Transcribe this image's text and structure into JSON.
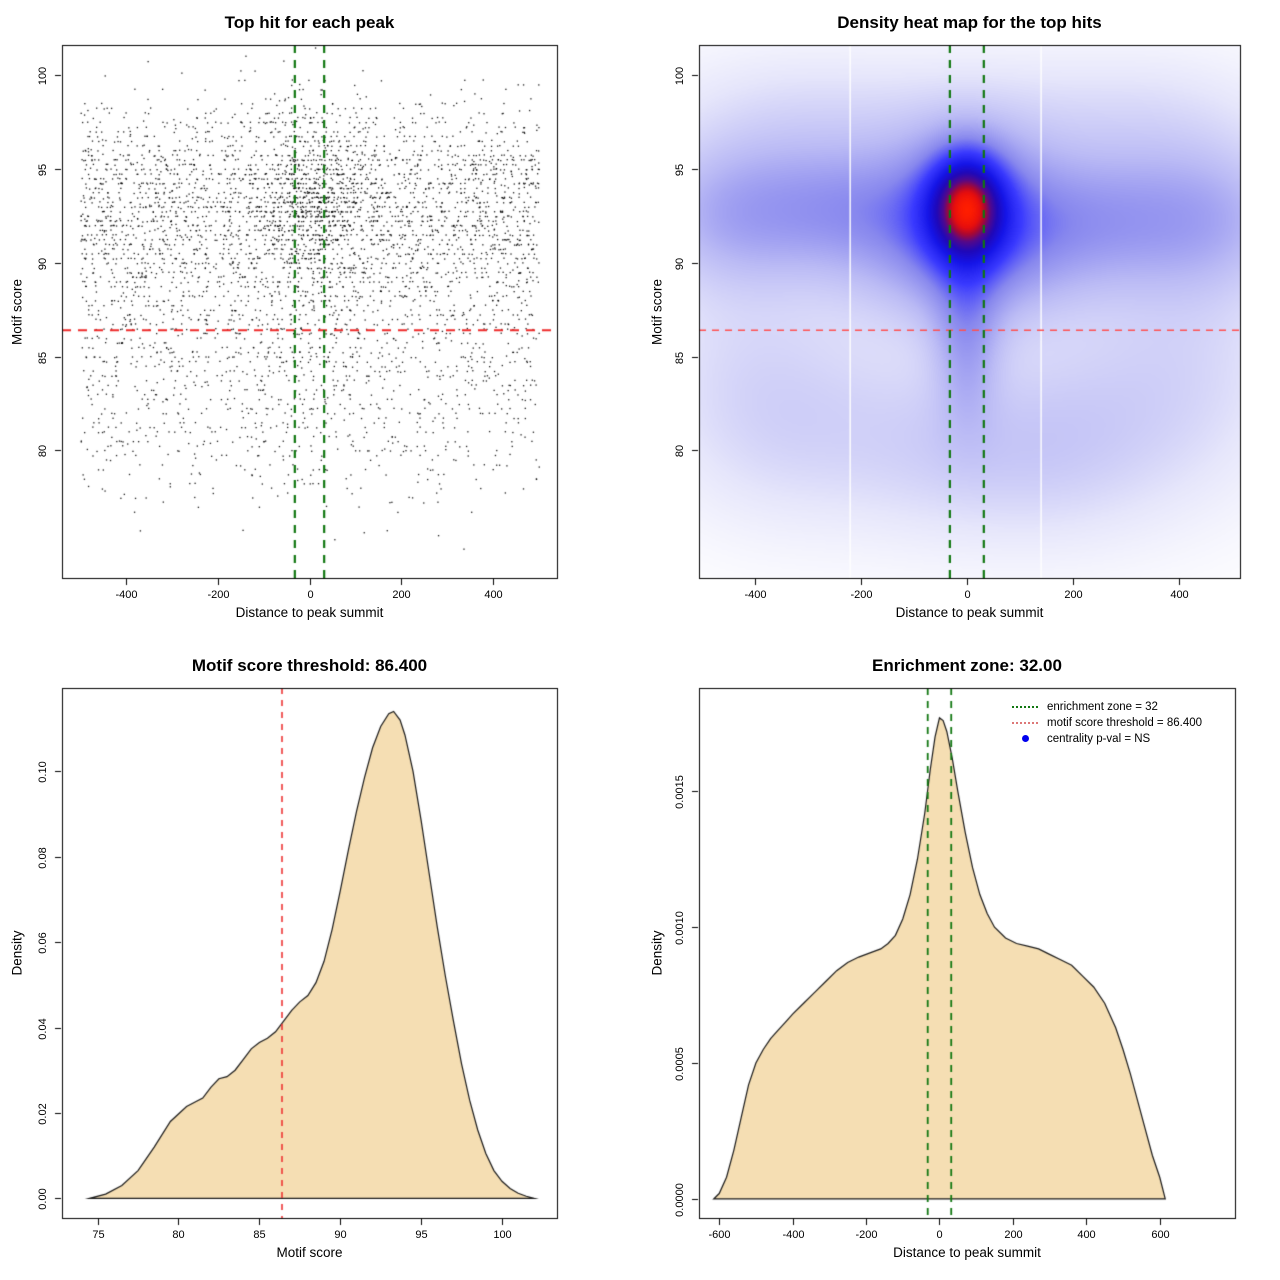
{
  "figure": {
    "background": "#FFFFFF",
    "description": "2x2 grid of motif enrichment diagnostic plots"
  },
  "chart_data": [
    {
      "id": "top-hits-scatter",
      "type": "scatter",
      "title": "Top hit for each peak",
      "xlabel": "Distance to peak summit",
      "ylabel": "Motif score",
      "xlim": [
        -540,
        540
      ],
      "ylim": [
        73.2,
        101.6
      ],
      "xticks": [
        {
          "v": -400,
          "label": "-400"
        },
        {
          "v": -200,
          "label": "-200"
        },
        {
          "v": 0,
          "label": "0"
        },
        {
          "v": 200,
          "label": "200"
        },
        {
          "v": 400,
          "label": "400"
        }
      ],
      "yticks": [
        {
          "v": 80,
          "label": "80"
        },
        {
          "v": 85,
          "label": "85"
        },
        {
          "v": 90,
          "label": "90"
        },
        {
          "v": 95,
          "label": "95"
        },
        {
          "v": 100,
          "label": "100"
        }
      ],
      "point_color": "#000000",
      "n_points": 4600,
      "x_data_range": [
        -500,
        500
      ],
      "score_quantize": 0.25,
      "center_bias": {
        "sd": 70,
        "prob_high": 0.2,
        "prob_mid": 0.12,
        "prob_low": 0.06
      },
      "threshold_line": {
        "y": 86.4,
        "color": "#EE2A2A",
        "dash": [
          9,
          7
        ],
        "width": 1.8
      },
      "zone_lines": {
        "x": [
          -32,
          32
        ],
        "color": "#117711",
        "dash": [
          8,
          7
        ],
        "width": 2.2
      }
    },
    {
      "id": "top-hits-heatmap",
      "type": "heatmap",
      "title": "Density heat map for the top hits",
      "xlabel": "Distance to peak summit",
      "ylabel": "Motif score",
      "xlim": [
        -505,
        515
      ],
      "ylim": [
        73.2,
        101.6
      ],
      "xticks": [
        {
          "v": -400,
          "label": "-400"
        },
        {
          "v": -200,
          "label": "-200"
        },
        {
          "v": 0,
          "label": "0"
        },
        {
          "v": 200,
          "label": "200"
        },
        {
          "v": 400,
          "label": "400"
        }
      ],
      "yticks": [
        {
          "v": 80,
          "label": "80"
        },
        {
          "v": 85,
          "label": "85"
        },
        {
          "v": 90,
          "label": "90"
        },
        {
          "v": 95,
          "label": "95"
        },
        {
          "v": 100,
          "label": "100"
        }
      ],
      "gamma": 0.66,
      "blobs": [
        {
          "cx": 0,
          "cy": 93.1,
          "sx": 48,
          "sy": 1.9,
          "w": 1.5
        },
        {
          "cx": 0,
          "cy": 92.6,
          "sx": 105,
          "sy": 2.9,
          "w": 0.9
        },
        {
          "cx": -235,
          "cy": 92.9,
          "sx": 125,
          "sy": 2.3,
          "w": 0.55
        },
        {
          "cx": 235,
          "cy": 92.4,
          "sx": 135,
          "sy": 2.4,
          "w": 0.52
        },
        {
          "cx": -455,
          "cy": 92.6,
          "sx": 110,
          "sy": 2.6,
          "w": 0.45
        },
        {
          "cx": 465,
          "cy": 92.4,
          "sx": 115,
          "sy": 2.7,
          "w": 0.42
        },
        {
          "cx": 0,
          "cy": 89.7,
          "sx": 190,
          "sy": 2.8,
          "w": 0.33
        },
        {
          "cx": 0,
          "cy": 87.3,
          "sx": 46,
          "sy": 2.6,
          "w": 0.35
        },
        {
          "cx": 0,
          "cy": 84.2,
          "sx": 40,
          "sy": 2.6,
          "w": 0.22
        },
        {
          "cx": -300,
          "cy": 81.2,
          "sx": 150,
          "sy": 3.4,
          "w": 0.21
        },
        {
          "cx": 255,
          "cy": 81.4,
          "sx": 170,
          "sy": 3.6,
          "w": 0.23
        },
        {
          "cx": -70,
          "cy": 80.3,
          "sx": 120,
          "sy": 3.2,
          "w": 0.16
        },
        {
          "cx": 110,
          "cy": 79.6,
          "sx": 130,
          "sy": 3.0,
          "w": 0.16
        },
        {
          "cx": 0,
          "cy": 97.6,
          "sx": 290,
          "sy": 2.3,
          "w": 0.17
        },
        {
          "cx": -350,
          "cy": 97.2,
          "sx": 150,
          "sy": 2.6,
          "w": 0.13
        },
        {
          "cx": 355,
          "cy": 97.1,
          "sx": 150,
          "sy": 2.6,
          "w": 0.12
        },
        {
          "cx": -425,
          "cy": 85.2,
          "sx": 130,
          "sy": 4.2,
          "w": 0.15
        },
        {
          "cx": 425,
          "cy": 86.1,
          "sx": 130,
          "sy": 4.2,
          "w": 0.17
        }
      ],
      "colormap": [
        [
          0.0,
          "#FFFFFF"
        ],
        [
          0.14,
          "#E6E6FB"
        ],
        [
          0.3,
          "#BBBBF5"
        ],
        [
          0.45,
          "#8888EE"
        ],
        [
          0.58,
          "#3A3AFF"
        ],
        [
          0.7,
          "#1515E8"
        ],
        [
          0.79,
          "#2008B8"
        ],
        [
          0.86,
          "#55088A"
        ],
        [
          0.91,
          "#A80834"
        ],
        [
          0.95,
          "#E60E0E"
        ],
        [
          1.0,
          "#FF1E00"
        ]
      ],
      "white_stripes": [
        -220,
        140
      ],
      "threshold_line": {
        "y": 86.4,
        "color": "#FF5050",
        "dash": [
          7,
          6
        ],
        "width": 1.5
      },
      "zone_lines": {
        "x": [
          -32,
          32
        ],
        "color": "#117711",
        "dash": [
          8,
          7
        ],
        "width": 2.2
      }
    },
    {
      "id": "motif-score-density",
      "type": "density",
      "title": "Motif score threshold: 86.400",
      "xlabel": "Motif score",
      "ylabel": "Density",
      "xlim": [
        72.8,
        103.4
      ],
      "ylim": [
        -0.0046,
        0.1195
      ],
      "xticks": [
        {
          "v": 75,
          "label": "75"
        },
        {
          "v": 80,
          "label": "80"
        },
        {
          "v": 85,
          "label": "85"
        },
        {
          "v": 90,
          "label": "90"
        },
        {
          "v": 95,
          "label": "95"
        },
        {
          "v": 100,
          "label": "100"
        }
      ],
      "yticks": [
        {
          "v": 0,
          "label": "0.00"
        },
        {
          "v": 0.02,
          "label": "0.02"
        },
        {
          "v": 0.04,
          "label": "0.04"
        },
        {
          "v": 0.06,
          "label": "0.06"
        },
        {
          "v": 0.08,
          "label": "0.08"
        },
        {
          "v": 0.1,
          "label": "0.10"
        }
      ],
      "fill": "#F5DEB3",
      "stroke": "#1A1A1A",
      "curve": [
        [
          74.5,
          0
        ],
        [
          75.5,
          0.001
        ],
        [
          76.5,
          0.003
        ],
        [
          77.5,
          0.0065
        ],
        [
          78.5,
          0.012
        ],
        [
          79.5,
          0.018
        ],
        [
          80.5,
          0.0215
        ],
        [
          81,
          0.0225
        ],
        [
          81.5,
          0.0235
        ],
        [
          82,
          0.026
        ],
        [
          82.5,
          0.028
        ],
        [
          83,
          0.0285
        ],
        [
          83.5,
          0.03
        ],
        [
          84,
          0.0325
        ],
        [
          84.5,
          0.035
        ],
        [
          85,
          0.0365
        ],
        [
          85.5,
          0.0375
        ],
        [
          86,
          0.039
        ],
        [
          86.5,
          0.0415
        ],
        [
          87,
          0.044
        ],
        [
          87.5,
          0.046
        ],
        [
          88,
          0.0475
        ],
        [
          88.5,
          0.0505
        ],
        [
          89,
          0.0555
        ],
        [
          89.5,
          0.063
        ],
        [
          90,
          0.072
        ],
        [
          90.5,
          0.0815
        ],
        [
          91,
          0.0905
        ],
        [
          91.5,
          0.0985
        ],
        [
          92,
          0.1055
        ],
        [
          92.5,
          0.1105
        ],
        [
          93,
          0.1135
        ],
        [
          93.3,
          0.114
        ],
        [
          93.7,
          0.112
        ],
        [
          94,
          0.1085
        ],
        [
          94.5,
          0.1
        ],
        [
          95,
          0.0885
        ],
        [
          95.5,
          0.076
        ],
        [
          96,
          0.0635
        ],
        [
          96.5,
          0.052
        ],
        [
          97,
          0.0415
        ],
        [
          97.5,
          0.0315
        ],
        [
          98,
          0.023
        ],
        [
          98.5,
          0.016
        ],
        [
          99,
          0.0105
        ],
        [
          99.5,
          0.0065
        ],
        [
          100,
          0.004
        ],
        [
          100.5,
          0.0023
        ],
        [
          101,
          0.0012
        ],
        [
          101.5,
          0.0005
        ],
        [
          102,
          0
        ]
      ],
      "threshold_line": {
        "x": 86.4,
        "color": "#EE3333",
        "dash": [
          6,
          6
        ],
        "width": 1.6
      }
    },
    {
      "id": "summit-distance-density",
      "type": "density",
      "title": "Enrichment zone: 32.00",
      "xlabel": "Distance to peak summit",
      "ylabel": "Density",
      "xlim": [
        -655,
        805
      ],
      "ylim": [
        -7e-05,
        0.00188
      ],
      "xticks": [
        {
          "v": -600,
          "label": "-600"
        },
        {
          "v": -400,
          "label": "-400"
        },
        {
          "v": -200,
          "label": "-200"
        },
        {
          "v": 0,
          "label": "0"
        },
        {
          "v": 200,
          "label": "200"
        },
        {
          "v": 400,
          "label": "400"
        },
        {
          "v": 600,
          "label": "600"
        }
      ],
      "yticks": [
        {
          "v": 0,
          "label": "0.0000"
        },
        {
          "v": 0.0005,
          "label": "0.0005"
        },
        {
          "v": 0.001,
          "label": "0.0010"
        },
        {
          "v": 0.0015,
          "label": "0.0015"
        }
      ],
      "fill": "#F5DEB3",
      "stroke": "#1A1A1A",
      "curve": [
        [
          -615,
          0
        ],
        [
          -600,
          2e-05
        ],
        [
          -580,
          8e-05
        ],
        [
          -560,
          0.00018
        ],
        [
          -540,
          0.0003
        ],
        [
          -520,
          0.00042
        ],
        [
          -500,
          0.0005
        ],
        [
          -480,
          0.00055
        ],
        [
          -460,
          0.00059
        ],
        [
          -440,
          0.00062
        ],
        [
          -420,
          0.00065
        ],
        [
          -400,
          0.00068
        ],
        [
          -370,
          0.00072
        ],
        [
          -340,
          0.00076
        ],
        [
          -310,
          0.0008
        ],
        [
          -280,
          0.00084
        ],
        [
          -250,
          0.00087
        ],
        [
          -220,
          0.00089
        ],
        [
          -200,
          0.0009
        ],
        [
          -180,
          0.00091
        ],
        [
          -160,
          0.00092
        ],
        [
          -140,
          0.00094
        ],
        [
          -120,
          0.00097
        ],
        [
          -100,
          0.00103
        ],
        [
          -80,
          0.00112
        ],
        [
          -60,
          0.00125
        ],
        [
          -40,
          0.00142
        ],
        [
          -25,
          0.00158
        ],
        [
          -12,
          0.0017
        ],
        [
          0,
          0.00177
        ],
        [
          10,
          0.00176
        ],
        [
          20,
          0.00172
        ],
        [
          35,
          0.00162
        ],
        [
          50,
          0.0015
        ],
        [
          70,
          0.00135
        ],
        [
          90,
          0.00122
        ],
        [
          110,
          0.00112
        ],
        [
          130,
          0.00105
        ],
        [
          150,
          0.001
        ],
        [
          180,
          0.00096
        ],
        [
          210,
          0.00094
        ],
        [
          240,
          0.00093
        ],
        [
          270,
          0.00092
        ],
        [
          300,
          0.0009
        ],
        [
          330,
          0.00088
        ],
        [
          360,
          0.00086
        ],
        [
          390,
          0.00082
        ],
        [
          420,
          0.00078
        ],
        [
          450,
          0.00072
        ],
        [
          480,
          0.00063
        ],
        [
          500,
          0.00055
        ],
        [
          520,
          0.00046
        ],
        [
          540,
          0.00036
        ],
        [
          560,
          0.00026
        ],
        [
          580,
          0.00016
        ],
        [
          600,
          8e-05
        ],
        [
          615,
          0
        ]
      ],
      "zone_lines": {
        "x": [
          -32,
          32
        ],
        "color": "#117711",
        "dash": [
          7,
          6
        ],
        "width": 1.8
      },
      "legend": {
        "items": [
          {
            "symbol": "dotted-line",
            "color": "#117711",
            "label": "enrichment zone = 32"
          },
          {
            "symbol": "dotted-line",
            "color": "#DD7777",
            "label": "motif score threshold = 86.400"
          },
          {
            "symbol": "dot",
            "color": "#0000EE",
            "label": "centrality p-val = NS"
          }
        ]
      }
    }
  ]
}
